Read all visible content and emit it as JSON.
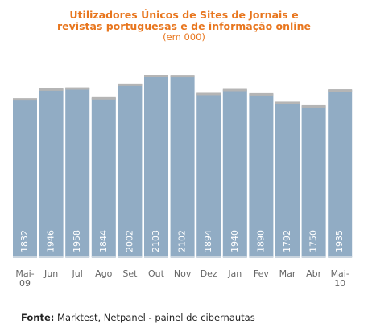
{
  "chart_data": {
    "type": "bar",
    "title_lines": [
      "Utilizadores Únicos de Sites de Jornais e",
      "revistas portuguesas e de informação online"
    ],
    "subtitle": "(em 000)",
    "categories": [
      [
        "Mai-",
        "09"
      ],
      [
        "Jun"
      ],
      [
        "Jul"
      ],
      [
        "Ago"
      ],
      [
        "Set"
      ],
      [
        "Out"
      ],
      [
        "Nov"
      ],
      [
        "Dez"
      ],
      [
        "Jan"
      ],
      [
        "Fev"
      ],
      [
        "Mar"
      ],
      [
        "Abr"
      ],
      [
        "Mai-",
        "10"
      ]
    ],
    "values": [
      1832,
      1946,
      1958,
      1844,
      2002,
      2103,
      2102,
      1894,
      1940,
      1890,
      1792,
      1750,
      1935
    ],
    "value_labels": [
      "1832",
      "1946",
      "1958",
      "1844",
      "2002",
      "2103",
      "2102",
      "1894",
      "1940",
      "1890",
      "1792",
      "1750",
      "1935"
    ],
    "ylim": [
      0,
      2103
    ],
    "grid": false,
    "bar_color": "#91acc4"
  },
  "footer": {
    "label": "Fonte:",
    "text": " Marktest, Netpanel - painel de cibernautas"
  }
}
